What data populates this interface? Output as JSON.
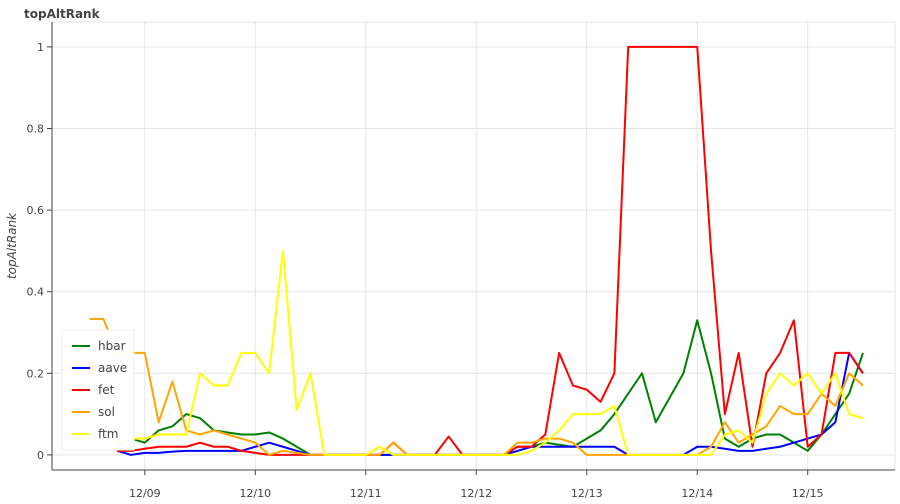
{
  "chart_data": {
    "type": "line",
    "title": "topAltRank",
    "y_label": "topAltRank",
    "x": [
      8.5,
      8.625,
      8.75,
      8.875,
      9,
      9.125,
      9.25,
      9.375,
      9.5,
      9.625,
      9.75,
      9.875,
      10,
      10.125,
      10.25,
      10.375,
      10.5,
      10.625,
      10.75,
      10.875,
      11,
      11.125,
      11.25,
      11.375,
      11.5,
      11.625,
      11.75,
      11.875,
      12,
      12.125,
      12.25,
      12.375,
      12.5,
      12.625,
      12.75,
      12.875,
      13,
      13.125,
      13.25,
      13.375,
      13.5,
      13.625,
      13.75,
      13.875,
      14,
      14.125,
      14.25,
      14.375,
      14.5,
      14.625,
      14.75,
      14.875,
      15,
      15.125,
      15.25,
      15.375,
      15.5
    ],
    "xlim": [
      8.16,
      15.79
    ],
    "xticks": [
      {
        "value": 9,
        "label": "12/09"
      },
      {
        "value": 10,
        "label": "12/10"
      },
      {
        "value": 11,
        "label": "12/11"
      },
      {
        "value": 12,
        "label": "12/12"
      },
      {
        "value": 13,
        "label": "12/13"
      },
      {
        "value": 14,
        "label": "12/14"
      },
      {
        "value": 15,
        "label": "12/15"
      }
    ],
    "ylim": [
      -0.037,
      1.061
    ],
    "yticks": [
      0,
      0.2,
      0.4,
      0.6,
      0.8,
      1
    ],
    "grid": true,
    "legend": "bottom-left",
    "series": [
      {
        "name": "hbar",
        "color": "#008000",
        "values": [
          null,
          null,
          0.02,
          0.04,
          0.03,
          0.06,
          0.07,
          0.1,
          0.09,
          0.06,
          0.055,
          0.05,
          0.05,
          0.055,
          0.04,
          0.02,
          0,
          0,
          0,
          0,
          0,
          0,
          0,
          0,
          0,
          0,
          0,
          0,
          0,
          0,
          0,
          0.02,
          0.02,
          0.03,
          0.025,
          0.02,
          0.04,
          0.06,
          0.1,
          0.15,
          0.2,
          0.08,
          0.14,
          0.2,
          0.33,
          0.2,
          0.04,
          0.02,
          0.04,
          0.05,
          0.05,
          0.03,
          0.01,
          0.05,
          0.1,
          0.15,
          0.25
        ]
      },
      {
        "name": "aave",
        "color": "#0000ff",
        "values": [
          null,
          null,
          0.01,
          0,
          0.005,
          0.005,
          0.008,
          0.01,
          0.01,
          0.01,
          0.01,
          0.01,
          0.02,
          0.03,
          0.02,
          0.01,
          0,
          0,
          0,
          0,
          0,
          0,
          0,
          0,
          0,
          0,
          0,
          0,
          0,
          0,
          0,
          0.01,
          0.02,
          0.02,
          0.02,
          0.02,
          0.02,
          0.02,
          0.02,
          0,
          0,
          0,
          0,
          0,
          0.02,
          0.02,
          0.015,
          0.01,
          0.01,
          0.015,
          0.02,
          0.03,
          0.04,
          0.05,
          0.08,
          0.25,
          0.2
        ]
      },
      {
        "name": "fet",
        "color": "#ff0000",
        "values": [
          null,
          null,
          0.01,
          0.01,
          0.015,
          0.02,
          0.02,
          0.02,
          0.03,
          0.02,
          0.02,
          0.01,
          0.005,
          0,
          0,
          0,
          0,
          0,
          0,
          0,
          0,
          0,
          0.03,
          0,
          0,
          0,
          0.045,
          0,
          0,
          0,
          0,
          0.02,
          0.02,
          0.05,
          0.25,
          0.17,
          0.16,
          0.13,
          0.2,
          1,
          1,
          1,
          1,
          1,
          1,
          0.5,
          0.1,
          0.25,
          0.02,
          0.2,
          0.25,
          0.33,
          0.02,
          0.05,
          0.25,
          0.25,
          0.2
        ]
      },
      {
        "name": "sol",
        "color": "#ffa500",
        "values": [
          0.333,
          0.333,
          0.25,
          0.25,
          0.25,
          0.08,
          0.18,
          0.06,
          0.05,
          0.06,
          0.05,
          0.04,
          0.03,
          0,
          0.01,
          0.005,
          0,
          0,
          0,
          0,
          0,
          0,
          0.03,
          0,
          0,
          0,
          0,
          0,
          0,
          0,
          0,
          0.03,
          0.03,
          0.04,
          0.04,
          0.03,
          0,
          0,
          0,
          0,
          0,
          0,
          0,
          0,
          0,
          0.02,
          0.08,
          0.03,
          0.05,
          0.07,
          0.12,
          0.1,
          0.1,
          0.15,
          0.12,
          0.2,
          0.17
        ]
      },
      {
        "name": "ftm",
        "color": "#ffff00",
        "values": [
          null,
          null,
          0.03,
          0.04,
          0.04,
          0.05,
          0.05,
          0.05,
          0.2,
          0.17,
          0.17,
          0.25,
          0.25,
          0.2,
          0.5,
          0.11,
          0.2,
          0,
          0,
          0,
          0,
          0.02,
          0,
          0,
          0,
          0,
          0,
          0,
          0,
          0,
          0,
          0,
          0.01,
          0.03,
          0.06,
          0.1,
          0.1,
          0.1,
          0.12,
          0,
          0,
          0,
          0,
          0,
          0,
          0,
          0.05,
          0.06,
          0.03,
          0.15,
          0.2,
          0.17,
          0.2,
          0.15,
          0.2,
          0.1,
          0.09
        ]
      }
    ]
  }
}
